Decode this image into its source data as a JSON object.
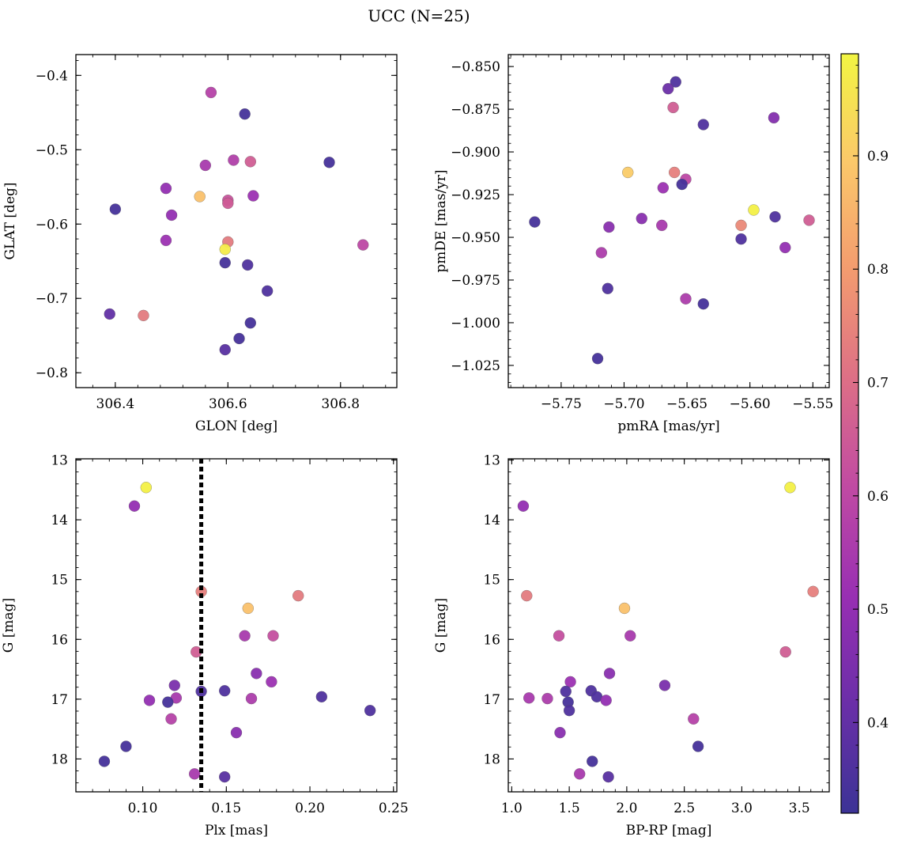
{
  "figure": {
    "title": "UCC (N=25)"
  },
  "colorbar": {
    "min": 0.32,
    "max": 0.99,
    "ticks": [
      "0.4",
      "0.5",
      "0.6",
      "0.7",
      "0.8",
      "0.9"
    ],
    "colormap": "plasma",
    "colors": [
      "#3c3396",
      "#6a2fa8",
      "#982fb3",
      "#c04aa3",
      "#dd6f86",
      "#f39b6f",
      "#fbc86a",
      "#f2f542"
    ]
  },
  "chart_data": [
    {
      "type": "scatter",
      "title": "",
      "xlabel": "GLON [deg]",
      "ylabel": "GLAT [deg]",
      "xlim": [
        306.33,
        306.9
      ],
      "ylim": [
        -0.82,
        -0.372
      ],
      "xticks": [
        "306.4",
        "306.6",
        "306.8"
      ],
      "yticks": [
        "−0.8",
        "−0.7",
        "−0.6",
        "−0.5",
        "−0.4"
      ],
      "points": [
        {
          "x": 306.57,
          "y": -0.423,
          "c": 0.58
        },
        {
          "x": 306.63,
          "y": -0.452,
          "c": 0.34
        },
        {
          "x": 306.78,
          "y": -0.517,
          "c": 0.34
        },
        {
          "x": 306.61,
          "y": -0.514,
          "c": 0.57
        },
        {
          "x": 306.64,
          "y": -0.516,
          "c": 0.66
        },
        {
          "x": 306.56,
          "y": -0.521,
          "c": 0.55
        },
        {
          "x": 306.49,
          "y": -0.552,
          "c": 0.5
        },
        {
          "x": 306.55,
          "y": -0.563,
          "c": 0.88
        },
        {
          "x": 306.6,
          "y": -0.568,
          "c": 0.63
        },
        {
          "x": 306.6,
          "y": -0.572,
          "c": 0.65
        },
        {
          "x": 306.645,
          "y": -0.562,
          "c": 0.52
        },
        {
          "x": 306.4,
          "y": -0.58,
          "c": 0.34
        },
        {
          "x": 306.5,
          "y": -0.588,
          "c": 0.5
        },
        {
          "x": 306.49,
          "y": -0.622,
          "c": 0.52
        },
        {
          "x": 306.6,
          "y": -0.624,
          "c": 0.73
        },
        {
          "x": 306.595,
          "y": -0.634,
          "c": 0.97
        },
        {
          "x": 306.84,
          "y": -0.628,
          "c": 0.6
        },
        {
          "x": 306.595,
          "y": -0.652,
          "c": 0.34
        },
        {
          "x": 306.635,
          "y": -0.655,
          "c": 0.36
        },
        {
          "x": 306.67,
          "y": -0.69,
          "c": 0.36
        },
        {
          "x": 306.39,
          "y": -0.721,
          "c": 0.4
        },
        {
          "x": 306.45,
          "y": -0.723,
          "c": 0.73
        },
        {
          "x": 306.64,
          "y": -0.733,
          "c": 0.34
        },
        {
          "x": 306.62,
          "y": -0.754,
          "c": 0.34
        },
        {
          "x": 306.595,
          "y": -0.769,
          "c": 0.38
        }
      ]
    },
    {
      "type": "scatter",
      "title": "",
      "xlabel": "pmRA [mas/yr]",
      "ylabel": "pmDE [mas/yr]",
      "xlim": [
        -5.792,
        -5.537
      ],
      "ylim": [
        -1.038,
        -0.843
      ],
      "xticks": [
        "−5.75",
        "−5.70",
        "−5.65",
        "−5.60",
        "−5.55"
      ],
      "yticks": [
        "−1.025",
        "−1.000",
        "−0.975",
        "−0.950",
        "−0.925",
        "−0.900",
        "−0.875",
        "−0.850"
      ],
      "points": [
        {
          "x": -5.659,
          "y": -0.859,
          "c": 0.36
        },
        {
          "x": -5.665,
          "y": -0.863,
          "c": 0.42
        },
        {
          "x": -5.661,
          "y": -0.874,
          "c": 0.66
        },
        {
          "x": -5.637,
          "y": -0.884,
          "c": 0.36
        },
        {
          "x": -5.581,
          "y": -0.88,
          "c": 0.47
        },
        {
          "x": -5.697,
          "y": -0.912,
          "c": 0.9
        },
        {
          "x": -5.66,
          "y": -0.912,
          "c": 0.74
        },
        {
          "x": -5.651,
          "y": -0.916,
          "c": 0.6
        },
        {
          "x": -5.654,
          "y": -0.919,
          "c": 0.34
        },
        {
          "x": -5.669,
          "y": -0.921,
          "c": 0.52
        },
        {
          "x": -5.597,
          "y": -0.934,
          "c": 0.98
        },
        {
          "x": -5.58,
          "y": -0.938,
          "c": 0.36
        },
        {
          "x": -5.553,
          "y": -0.94,
          "c": 0.66
        },
        {
          "x": -5.771,
          "y": -0.941,
          "c": 0.34
        },
        {
          "x": -5.686,
          "y": -0.939,
          "c": 0.48
        },
        {
          "x": -5.67,
          "y": -0.943,
          "c": 0.55
        },
        {
          "x": -5.712,
          "y": -0.944,
          "c": 0.48
        },
        {
          "x": -5.607,
          "y": -0.943,
          "c": 0.76
        },
        {
          "x": -5.607,
          "y": -0.951,
          "c": 0.36
        },
        {
          "x": -5.572,
          "y": -0.956,
          "c": 0.5
        },
        {
          "x": -5.718,
          "y": -0.959,
          "c": 0.56
        },
        {
          "x": -5.713,
          "y": -0.98,
          "c": 0.36
        },
        {
          "x": -5.651,
          "y": -0.986,
          "c": 0.56
        },
        {
          "x": -5.637,
          "y": -0.989,
          "c": 0.34
        },
        {
          "x": -5.721,
          "y": -1.021,
          "c": 0.34
        }
      ]
    },
    {
      "type": "scatter",
      "title": "",
      "xlabel": "Plx [mas]",
      "ylabel": "G [mag]",
      "xlim": [
        0.06,
        0.252
      ],
      "ylim": [
        18.55,
        12.98
      ],
      "y_inverted": true,
      "xticks": [
        "0.10",
        "0.15",
        "0.20",
        "0.25"
      ],
      "yticks": [
        "13",
        "14",
        "15",
        "16",
        "17",
        "18"
      ],
      "vline": {
        "x": 0.135,
        "style": "dotted"
      },
      "points": [
        {
          "x": 0.102,
          "y": 13.46,
          "c": 0.98
        },
        {
          "x": 0.095,
          "y": 13.77,
          "c": 0.5
        },
        {
          "x": 0.135,
          "y": 15.2,
          "c": 0.74
        },
        {
          "x": 0.193,
          "y": 15.27,
          "c": 0.73
        },
        {
          "x": 0.163,
          "y": 15.48,
          "c": 0.88
        },
        {
          "x": 0.161,
          "y": 15.94,
          "c": 0.55
        },
        {
          "x": 0.178,
          "y": 15.94,
          "c": 0.62
        },
        {
          "x": 0.132,
          "y": 16.21,
          "c": 0.66
        },
        {
          "x": 0.168,
          "y": 16.57,
          "c": 0.48
        },
        {
          "x": 0.177,
          "y": 16.71,
          "c": 0.52
        },
        {
          "x": 0.119,
          "y": 16.77,
          "c": 0.45
        },
        {
          "x": 0.135,
          "y": 16.87,
          "c": 0.36
        },
        {
          "x": 0.149,
          "y": 16.86,
          "c": 0.36
        },
        {
          "x": 0.207,
          "y": 16.96,
          "c": 0.36
        },
        {
          "x": 0.12,
          "y": 16.98,
          "c": 0.55
        },
        {
          "x": 0.165,
          "y": 16.99,
          "c": 0.56
        },
        {
          "x": 0.104,
          "y": 17.02,
          "c": 0.5
        },
        {
          "x": 0.115,
          "y": 17.05,
          "c": 0.34
        },
        {
          "x": 0.236,
          "y": 17.19,
          "c": 0.36
        },
        {
          "x": 0.117,
          "y": 17.33,
          "c": 0.58
        },
        {
          "x": 0.156,
          "y": 17.56,
          "c": 0.48
        },
        {
          "x": 0.09,
          "y": 17.79,
          "c": 0.34
        },
        {
          "x": 0.077,
          "y": 18.04,
          "c": 0.34
        },
        {
          "x": 0.131,
          "y": 18.25,
          "c": 0.55
        },
        {
          "x": 0.149,
          "y": 18.3,
          "c": 0.38
        }
      ]
    },
    {
      "type": "scatter",
      "title": "",
      "xlabel": "BP-RP [mag]",
      "ylabel": "G [mag]",
      "xlim": [
        0.97,
        3.76
      ],
      "ylim": [
        18.55,
        12.98
      ],
      "y_inverted": true,
      "xticks": [
        "1.0",
        "1.5",
        "2.0",
        "2.5",
        "3.0",
        "3.5"
      ],
      "yticks": [
        "13",
        "14",
        "15",
        "16",
        "17",
        "18"
      ],
      "points": [
        {
          "x": 3.42,
          "y": 13.46,
          "c": 0.98
        },
        {
          "x": 1.1,
          "y": 13.77,
          "c": 0.5
        },
        {
          "x": 3.62,
          "y": 15.2,
          "c": 0.74
        },
        {
          "x": 1.13,
          "y": 15.27,
          "c": 0.73
        },
        {
          "x": 1.98,
          "y": 15.48,
          "c": 0.88
        },
        {
          "x": 1.41,
          "y": 15.94,
          "c": 0.62
        },
        {
          "x": 2.03,
          "y": 15.94,
          "c": 0.55
        },
        {
          "x": 3.38,
          "y": 16.21,
          "c": 0.66
        },
        {
          "x": 1.85,
          "y": 16.57,
          "c": 0.48
        },
        {
          "x": 1.51,
          "y": 16.71,
          "c": 0.52
        },
        {
          "x": 2.33,
          "y": 16.77,
          "c": 0.45
        },
        {
          "x": 1.47,
          "y": 16.87,
          "c": 0.36
        },
        {
          "x": 1.69,
          "y": 16.86,
          "c": 0.36
        },
        {
          "x": 1.74,
          "y": 16.96,
          "c": 0.36
        },
        {
          "x": 1.15,
          "y": 16.98,
          "c": 0.55
        },
        {
          "x": 1.31,
          "y": 16.99,
          "c": 0.56
        },
        {
          "x": 1.82,
          "y": 17.02,
          "c": 0.5
        },
        {
          "x": 1.49,
          "y": 17.05,
          "c": 0.34
        },
        {
          "x": 1.5,
          "y": 17.19,
          "c": 0.36
        },
        {
          "x": 2.58,
          "y": 17.33,
          "c": 0.58
        },
        {
          "x": 1.42,
          "y": 17.56,
          "c": 0.48
        },
        {
          "x": 2.62,
          "y": 17.79,
          "c": 0.34
        },
        {
          "x": 1.7,
          "y": 18.04,
          "c": 0.34
        },
        {
          "x": 1.59,
          "y": 18.25,
          "c": 0.55
        },
        {
          "x": 1.84,
          "y": 18.3,
          "c": 0.38
        }
      ]
    }
  ]
}
